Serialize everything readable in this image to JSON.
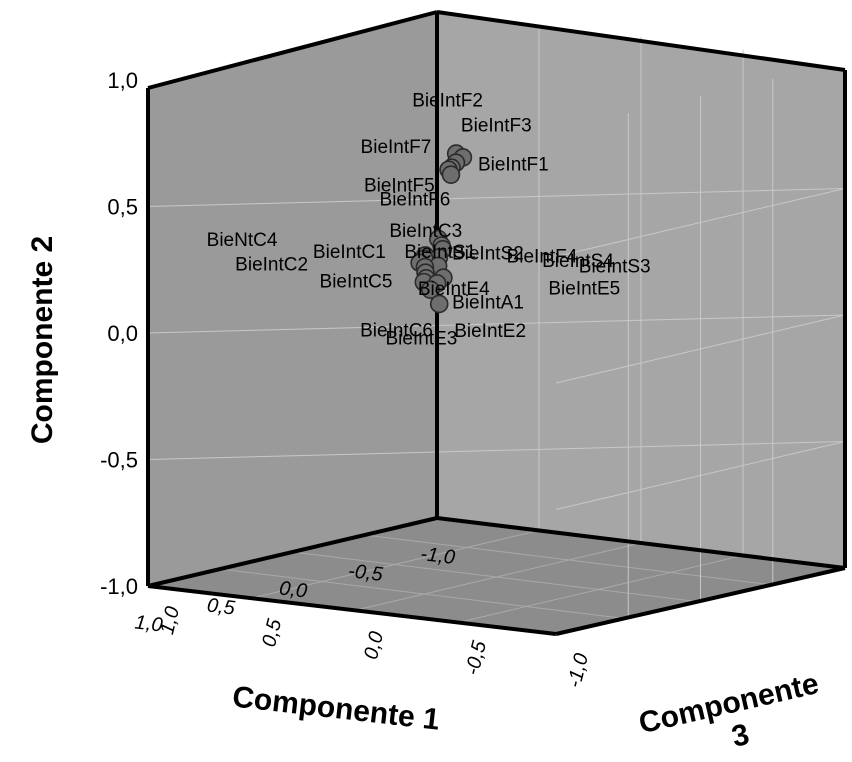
{
  "chart_data": {
    "type": "scatter",
    "dimensions": 3,
    "xlabel": "Componente 1",
    "ylabel": "Componente 2",
    "zlabel": "Componente 3",
    "xlabel_part1": "Componente",
    "xlabel_part2": "1",
    "zlabel_part1": "Componente",
    "zlabel_part2": "3",
    "xlim": [
      -1.0,
      1.0
    ],
    "ylim": [
      -1.0,
      1.0
    ],
    "zlim": [
      -1.0,
      1.0
    ],
    "x_ticks": [
      "-1,0",
      "-0,5",
      "0,0",
      "0,5",
      "1,0"
    ],
    "y_ticks": [
      "-1,0",
      "-0,5",
      "0,0",
      "0,5",
      "1,0"
    ],
    "z_ticks": [
      "1,0",
      "0,5",
      "0,0",
      "-0,5",
      "-1,0"
    ],
    "grid": true,
    "colors": {
      "left_wall": "#9a9a9a",
      "right_wall": "#a6a6a6",
      "floor": "#8c8c8c",
      "marker": "#6e6e6e",
      "marker_edge": "#2b2b2b"
    },
    "points": [
      {
        "label": "BieIntF2",
        "x": 0.42,
        "y": 0.74,
        "z": -0.1
      },
      {
        "label": "BieIntF3",
        "x": 0.43,
        "y": 0.73,
        "z": -0.14
      },
      {
        "label": "BieIntF1",
        "x": 0.45,
        "y": 0.71,
        "z": -0.12
      },
      {
        "label": "BieIntF7",
        "x": 0.36,
        "y": 0.66,
        "z": -0.02
      },
      {
        "label": "BieIntF5",
        "x": 0.4,
        "y": 0.65,
        "z": -0.06
      },
      {
        "label": "BieIntF6",
        "x": 0.41,
        "y": 0.68,
        "z": -0.07
      },
      {
        "label": "BieIntS1",
        "x": 0.6,
        "y": 0.43,
        "z": -0.14
      },
      {
        "label": "BieIntF4",
        "x": 0.62,
        "y": 0.41,
        "z": -0.17
      },
      {
        "label": "BieIntS3",
        "x": 0.64,
        "y": 0.4,
        "z": -0.19
      },
      {
        "label": "BieIntS2",
        "x": 0.61,
        "y": 0.36,
        "z": -0.15
      },
      {
        "label": "BieIntS4",
        "x": 0.63,
        "y": 0.33,
        "z": -0.16
      },
      {
        "label": "BieIntA1",
        "x": 0.58,
        "y": 0.25,
        "z": -0.12
      },
      {
        "label": "BieIntE5",
        "x": 0.65,
        "y": 0.29,
        "z": -0.2
      },
      {
        "label": "BieIntE2",
        "x": 0.58,
        "y": 0.17,
        "z": -0.13
      },
      {
        "label": "BieIntE3",
        "x": 0.57,
        "y": 0.22,
        "z": -0.08
      },
      {
        "label": "BieIntE4",
        "x": 0.39,
        "y": 0.21,
        "z": 0.08
      },
      {
        "label": "BieIntC3",
        "x": 0.33,
        "y": 0.29,
        "z": 0.12
      },
      {
        "label": "BieNtC4",
        "x": 0.32,
        "y": 0.27,
        "z": 0.15
      },
      {
        "label": "BieIntC1",
        "x": 0.34,
        "y": 0.26,
        "z": 0.11
      },
      {
        "label": "BieIntC2",
        "x": 0.31,
        "y": 0.3,
        "z": 0.13
      },
      {
        "label": "BieIntC5",
        "x": 0.35,
        "y": 0.24,
        "z": 0.1
      },
      {
        "label": "BieIntC6",
        "x": 0.36,
        "y": 0.22,
        "z": 0.09
      }
    ]
  }
}
